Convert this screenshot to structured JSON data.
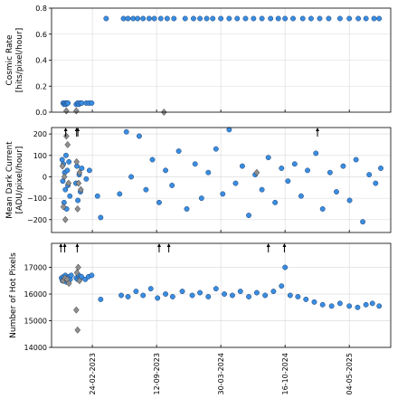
{
  "chart_data": [
    {
      "type": "scatter",
      "ylabel": "Cosmic Rate\n[hits/pixel/hour]",
      "ylim": [
        0.0,
        0.8
      ],
      "yticks": [
        "0.0",
        "0.2",
        "0.4",
        "0.6",
        "0.8"
      ],
      "grid": true,
      "x_axis": "date",
      "series": [
        {
          "marker": "circle",
          "points": [
            [
              "2022-11-25",
              0.07
            ],
            [
              "2022-11-28",
              0.06
            ],
            [
              "2022-12-01",
              0.07
            ],
            [
              "2022-12-04",
              0.06
            ],
            [
              "2022-12-07",
              0.07
            ],
            [
              "2022-12-10",
              0.07
            ],
            [
              "2023-01-05",
              0.06
            ],
            [
              "2023-01-09",
              0.07
            ],
            [
              "2023-01-13",
              0.06
            ],
            [
              "2023-01-17",
              0.07
            ],
            [
              "2023-01-22",
              0.07
            ],
            [
              "2023-02-05",
              0.07
            ],
            [
              "2023-02-14",
              0.07
            ],
            [
              "2023-02-22",
              0.07
            ],
            [
              "2023-04-08",
              0.72
            ],
            [
              "2023-06-01",
              0.72
            ],
            [
              "2023-06-15",
              0.72
            ],
            [
              "2023-07-01",
              0.72
            ],
            [
              "2023-07-15",
              0.72
            ],
            [
              "2023-08-01",
              0.72
            ],
            [
              "2023-08-20",
              0.72
            ],
            [
              "2023-09-05",
              0.72
            ],
            [
              "2023-09-25",
              0.72
            ],
            [
              "2023-10-15",
              0.72
            ],
            [
              "2023-11-05",
              0.72
            ],
            [
              "2023-12-10",
              0.72
            ],
            [
              "2024-01-05",
              0.72
            ],
            [
              "2024-01-25",
              0.72
            ],
            [
              "2024-02-15",
              0.72
            ],
            [
              "2024-03-05",
              0.72
            ],
            [
              "2024-03-30",
              0.72
            ],
            [
              "2024-04-25",
              0.72
            ],
            [
              "2024-05-20",
              0.72
            ],
            [
              "2024-06-15",
              0.72
            ],
            [
              "2024-07-10",
              0.72
            ],
            [
              "2024-08-05",
              0.72
            ],
            [
              "2024-09-01",
              0.72
            ],
            [
              "2024-09-25",
              0.72
            ],
            [
              "2024-10-16",
              0.72
            ],
            [
              "2024-11-10",
              0.72
            ],
            [
              "2024-12-10",
              0.72
            ],
            [
              "2025-01-05",
              0.72
            ],
            [
              "2025-02-01",
              0.72
            ],
            [
              "2025-03-01",
              0.72
            ],
            [
              "2025-04-05",
              0.72
            ],
            [
              "2025-05-04",
              0.72
            ],
            [
              "2025-06-01",
              0.72
            ],
            [
              "2025-06-25",
              0.72
            ],
            [
              "2025-07-20",
              0.72
            ],
            [
              "2025-08-05",
              0.72
            ]
          ]
        },
        {
          "marker": "diamond",
          "points": [
            [
              "2022-12-05",
              0.01
            ],
            [
              "2023-01-05",
              0.01
            ],
            [
              "2023-10-05",
              0.0
            ]
          ]
        }
      ]
    },
    {
      "type": "scatter",
      "ylabel": "Mean Dark Current\n[ADU/pixel/hour]",
      "ylim": [
        -260,
        230
      ],
      "yticks": [
        "−200",
        "−100",
        "0",
        "100",
        "200"
      ],
      "grid": true,
      "x_axis": "date",
      "arrows_at": [
        "2022-12-03",
        "2023-01-06",
        "2023-01-10",
        "2025-01-25"
      ],
      "series": [
        {
          "marker": "circle",
          "points": [
            [
              "2022-11-22",
              80
            ],
            [
              "2022-11-24",
              -20
            ],
            [
              "2022-11-26",
              60
            ],
            [
              "2022-11-28",
              -120
            ],
            [
              "2022-11-30",
              20
            ],
            [
              "2022-12-02",
              -60
            ],
            [
              "2022-12-04",
              100
            ],
            [
              "2022-12-06",
              -150
            ],
            [
              "2022-12-08",
              30
            ],
            [
              "2022-12-10",
              -40
            ],
            [
              "2022-12-13",
              70
            ],
            [
              "2022-12-16",
              -90
            ],
            [
              "2023-01-04",
              -30
            ],
            [
              "2023-01-07",
              50
            ],
            [
              "2023-01-10",
              -110
            ],
            [
              "2023-01-14",
              10
            ],
            [
              "2023-01-18",
              -70
            ],
            [
              "2023-01-22",
              40
            ],
            [
              "2023-02-05",
              -10
            ],
            [
              "2023-02-15",
              30
            ],
            [
              "2023-03-12",
              -90
            ],
            [
              "2023-03-22",
              -190
            ],
            [
              "2023-05-20",
              -80
            ],
            [
              "2023-06-10",
              210
            ],
            [
              "2023-06-25",
              0
            ],
            [
              "2023-07-20",
              190
            ],
            [
              "2023-08-10",
              -60
            ],
            [
              "2023-08-30",
              80
            ],
            [
              "2023-09-20",
              -120
            ],
            [
              "2023-10-10",
              30
            ],
            [
              "2023-10-30",
              -40
            ],
            [
              "2023-11-20",
              120
            ],
            [
              "2023-12-15",
              -150
            ],
            [
              "2024-01-10",
              60
            ],
            [
              "2024-01-30",
              -100
            ],
            [
              "2024-02-20",
              20
            ],
            [
              "2024-03-15",
              130
            ],
            [
              "2024-04-05",
              -80
            ],
            [
              "2024-04-25",
              220
            ],
            [
              "2024-05-15",
              -30
            ],
            [
              "2024-06-05",
              50
            ],
            [
              "2024-06-25",
              -180
            ],
            [
              "2024-07-15",
              10
            ],
            [
              "2024-08-05",
              -60
            ],
            [
              "2024-08-25",
              90
            ],
            [
              "2024-09-15",
              -120
            ],
            [
              "2024-10-05",
              40
            ],
            [
              "2024-10-25",
              -20
            ],
            [
              "2024-11-15",
              60
            ],
            [
              "2024-12-05",
              -90
            ],
            [
              "2024-12-25",
              30
            ],
            [
              "2025-01-20",
              110
            ],
            [
              "2025-02-10",
              -150
            ],
            [
              "2025-03-05",
              20
            ],
            [
              "2025-03-25",
              -70
            ],
            [
              "2025-04-15",
              50
            ],
            [
              "2025-05-05",
              -110
            ],
            [
              "2025-05-25",
              80
            ],
            [
              "2025-06-15",
              -210
            ],
            [
              "2025-07-05",
              10
            ],
            [
              "2025-07-25",
              -30
            ],
            [
              "2025-08-10",
              40
            ]
          ]
        },
        {
          "marker": "diamond",
          "points": [
            [
              "2022-11-23",
              50
            ],
            [
              "2022-11-26",
              -140
            ],
            [
              "2022-11-29",
              0
            ],
            [
              "2022-12-02",
              -200
            ],
            [
              "2022-12-05",
              190
            ],
            [
              "2022-12-09",
              150
            ],
            [
              "2022-12-12",
              -30
            ],
            [
              "2023-01-06",
              70
            ],
            [
              "2023-01-09",
              -150
            ],
            [
              "2023-01-12",
              -30
            ],
            [
              "2023-01-15",
              20
            ],
            [
              "2023-01-19",
              -60
            ],
            [
              "2024-07-20",
              20
            ]
          ]
        }
      ]
    },
    {
      "type": "scatter",
      "ylabel": "Number of Hot Pixels",
      "ylim": [
        14000,
        17900
      ],
      "yticks": [
        "14000",
        "15000",
        "16000",
        "17000"
      ],
      "grid": true,
      "x_axis": "date",
      "xticks": [
        "24-02-2023",
        "12-09-2023",
        "30-03-2024",
        "16-10-2024",
        "04-05-2025"
      ],
      "arrows_at": [
        "2022-11-18",
        "2022-11-30",
        "2023-01-08",
        "2023-09-20",
        "2023-10-20",
        "2024-08-25",
        "2024-10-14"
      ],
      "series": [
        {
          "marker": "circle",
          "points": [
            [
              "2022-11-20",
              16600
            ],
            [
              "2022-11-23",
              16500
            ],
            [
              "2022-11-26",
              16650
            ],
            [
              "2022-11-29",
              16550
            ],
            [
              "2022-12-02",
              16700
            ],
            [
              "2022-12-05",
              16450
            ],
            [
              "2022-12-08",
              16600
            ],
            [
              "2022-12-11",
              16500
            ],
            [
              "2022-12-14",
              16650
            ],
            [
              "2022-12-17",
              16550
            ],
            [
              "2022-12-20",
              16700
            ],
            [
              "2023-01-05",
              16600
            ],
            [
              "2023-01-09",
              16550
            ],
            [
              "2023-01-13",
              16700
            ],
            [
              "2023-01-17",
              16600
            ],
            [
              "2023-01-21",
              16650
            ],
            [
              "2023-02-02",
              16550
            ],
            [
              "2023-02-12",
              16650
            ],
            [
              "2023-02-22",
              16700
            ],
            [
              "2023-03-22",
              15800
            ],
            [
              "2023-05-25",
              15950
            ],
            [
              "2023-06-15",
              15900
            ],
            [
              "2023-07-10",
              16100
            ],
            [
              "2023-08-01",
              15950
            ],
            [
              "2023-08-25",
              16200
            ],
            [
              "2023-09-15",
              15850
            ],
            [
              "2023-10-10",
              16000
            ],
            [
              "2023-11-01",
              15900
            ],
            [
              "2023-12-01",
              16100
            ],
            [
              "2024-01-01",
              15950
            ],
            [
              "2024-01-25",
              16050
            ],
            [
              "2024-02-20",
              15900
            ],
            [
              "2024-03-15",
              16200
            ],
            [
              "2024-04-10",
              16000
            ],
            [
              "2024-05-05",
              15950
            ],
            [
              "2024-05-30",
              16100
            ],
            [
              "2024-06-25",
              15900
            ],
            [
              "2024-07-20",
              16050
            ],
            [
              "2024-08-15",
              15950
            ],
            [
              "2024-09-10",
              16100
            ],
            [
              "2024-10-05",
              16300
            ],
            [
              "2024-10-16",
              17000
            ],
            [
              "2024-11-01",
              15950
            ],
            [
              "2024-11-25",
              15900
            ],
            [
              "2024-12-20",
              15800
            ],
            [
              "2025-01-15",
              15700
            ],
            [
              "2025-02-10",
              15600
            ],
            [
              "2025-03-10",
              15550
            ],
            [
              "2025-04-05",
              15650
            ],
            [
              "2025-05-04",
              15550
            ],
            [
              "2025-05-30",
              15500
            ],
            [
              "2025-06-25",
              15600
            ],
            [
              "2025-07-15",
              15650
            ],
            [
              "2025-08-05",
              15550
            ]
          ]
        },
        {
          "marker": "diamond",
          "points": [
            [
              "2022-11-25",
              16500
            ],
            [
              "2022-12-01",
              16600
            ],
            [
              "2022-12-07",
              16550
            ],
            [
              "2022-12-13",
              16400
            ],
            [
              "2023-01-07",
              16800
            ],
            [
              "2023-01-11",
              17000
            ],
            [
              "2023-01-15",
              16500
            ],
            [
              "2023-01-09",
              14650
            ],
            [
              "2023-01-05",
              15400
            ]
          ]
        }
      ]
    }
  ]
}
